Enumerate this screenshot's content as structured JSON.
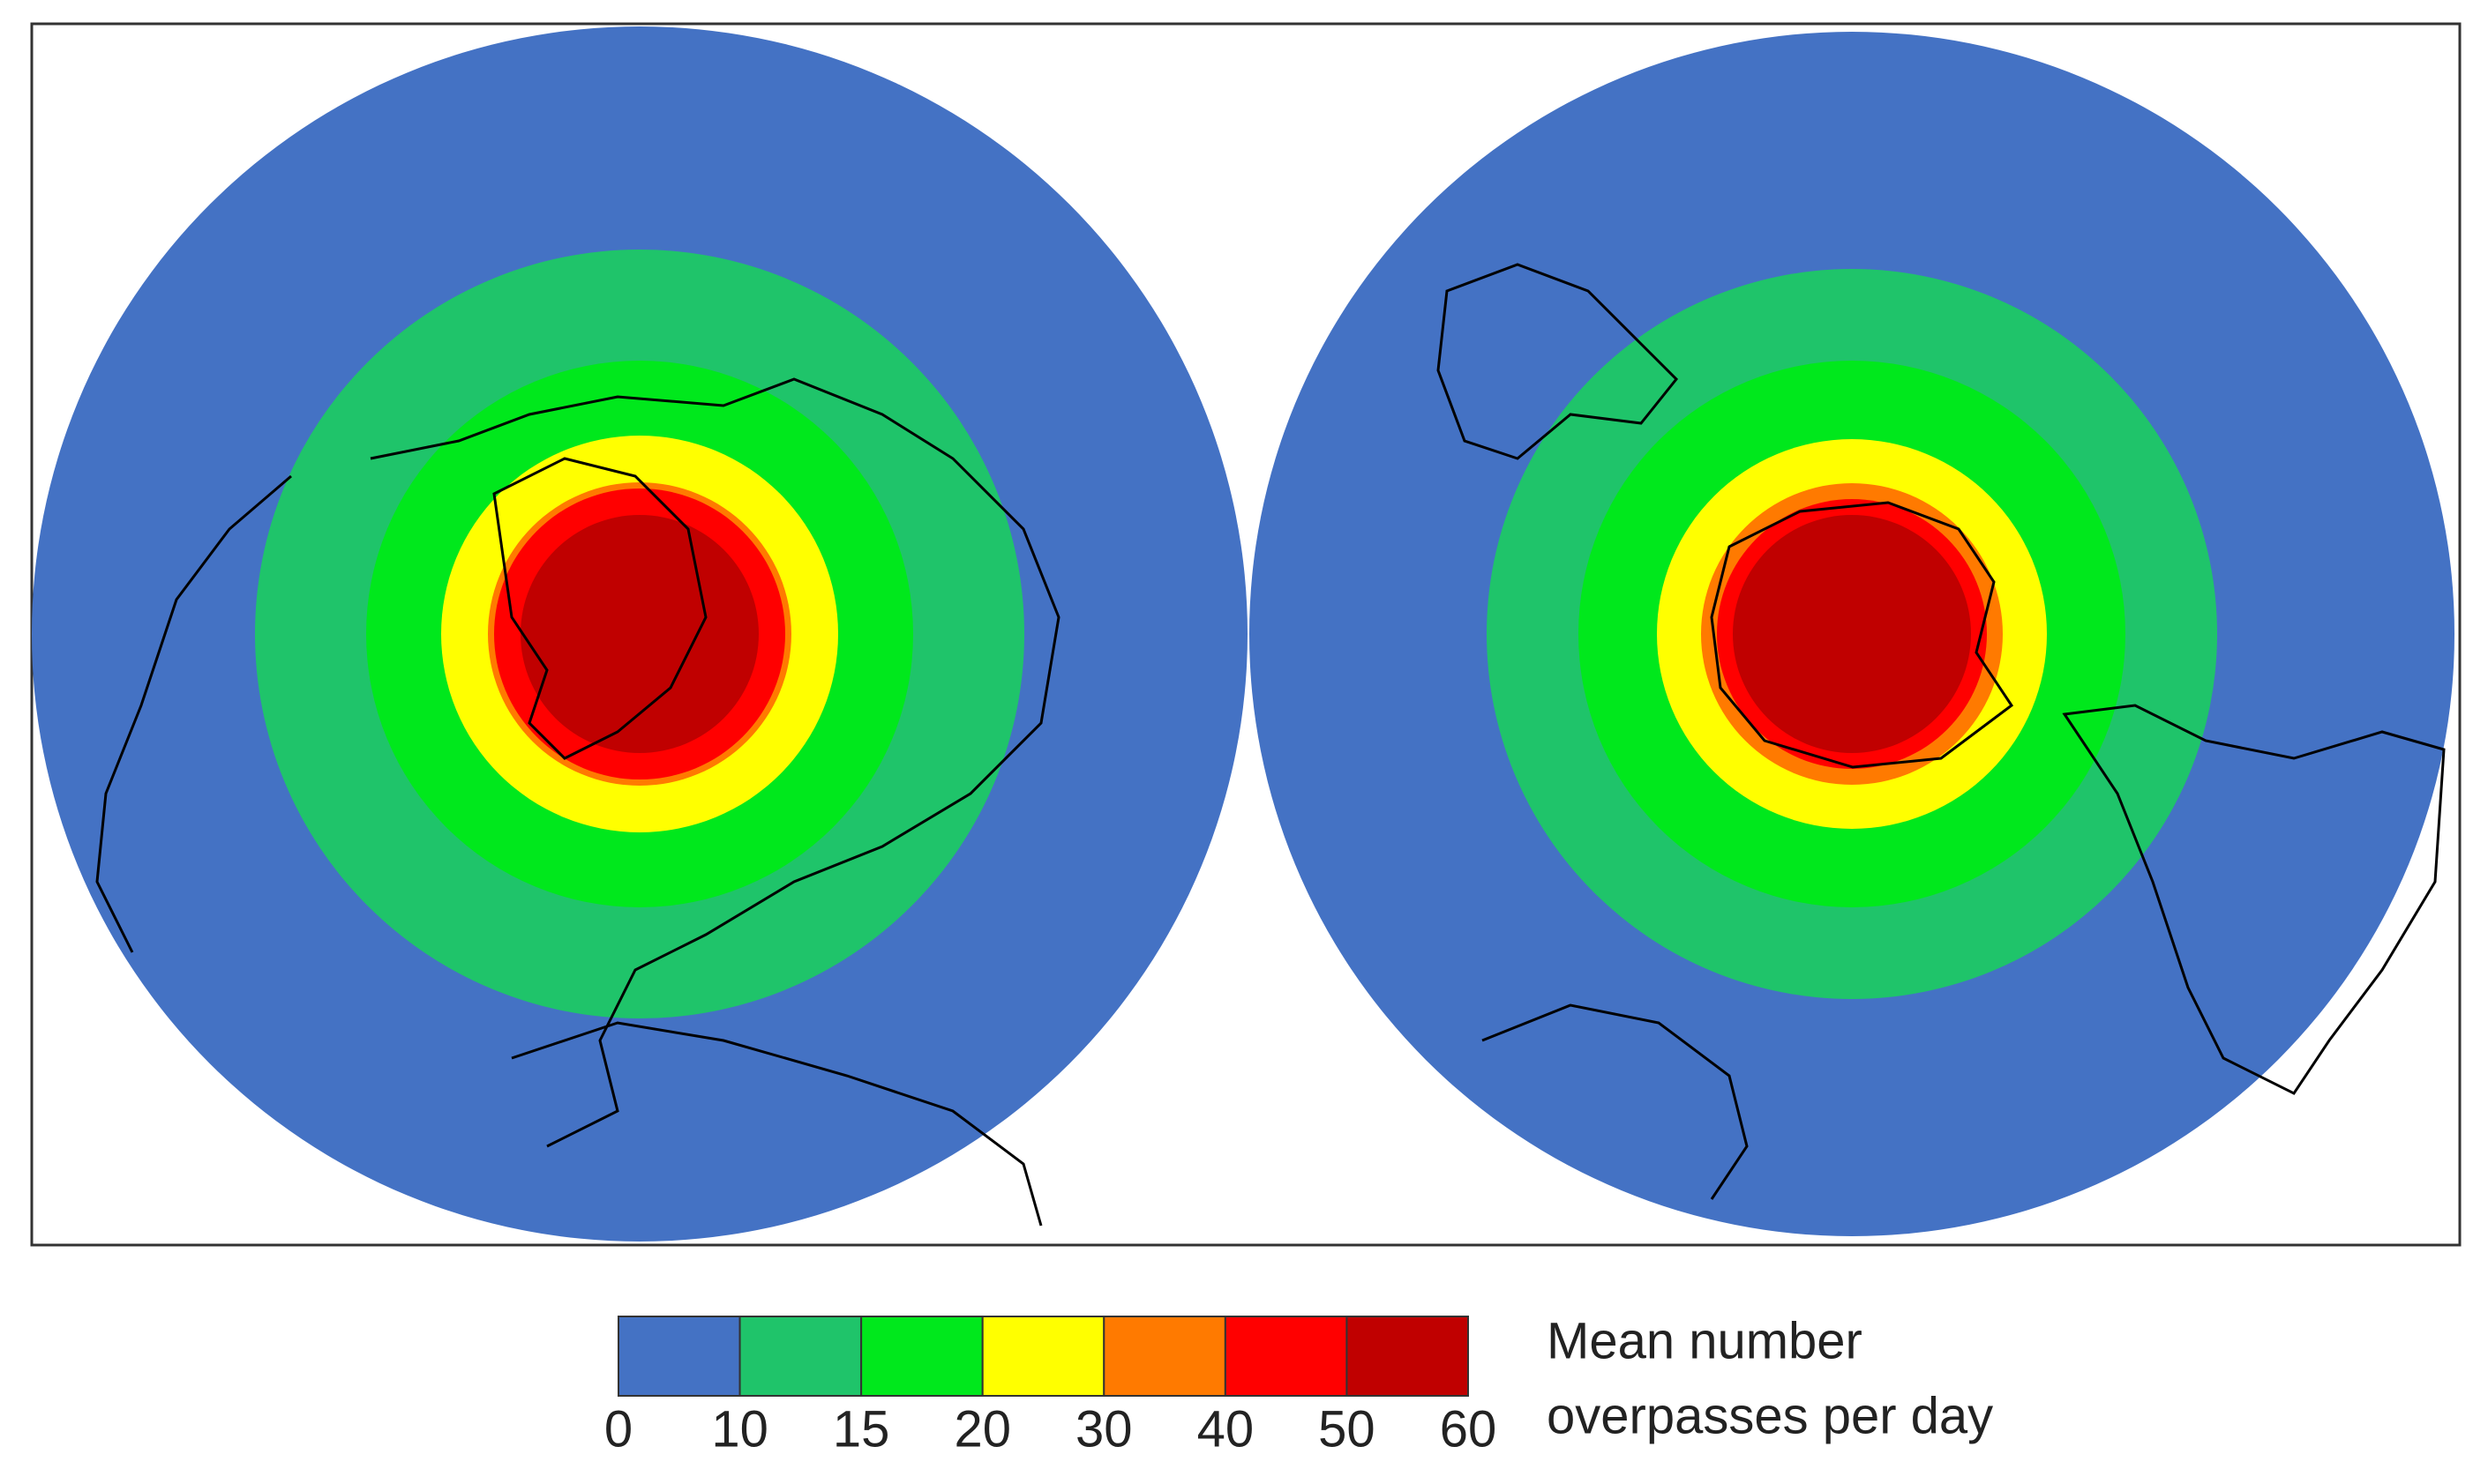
{
  "legend": {
    "title_lines": [
      "Mean number",
      "overpasses per day"
    ],
    "ticks": [
      0,
      10,
      15,
      20,
      30,
      40,
      50,
      60
    ],
    "colors": [
      "#4472c4",
      "#1fc46a",
      "#00e81c",
      "#ffff00",
      "#ff7a00",
      "#ff0000",
      "#c00000"
    ]
  }
}
